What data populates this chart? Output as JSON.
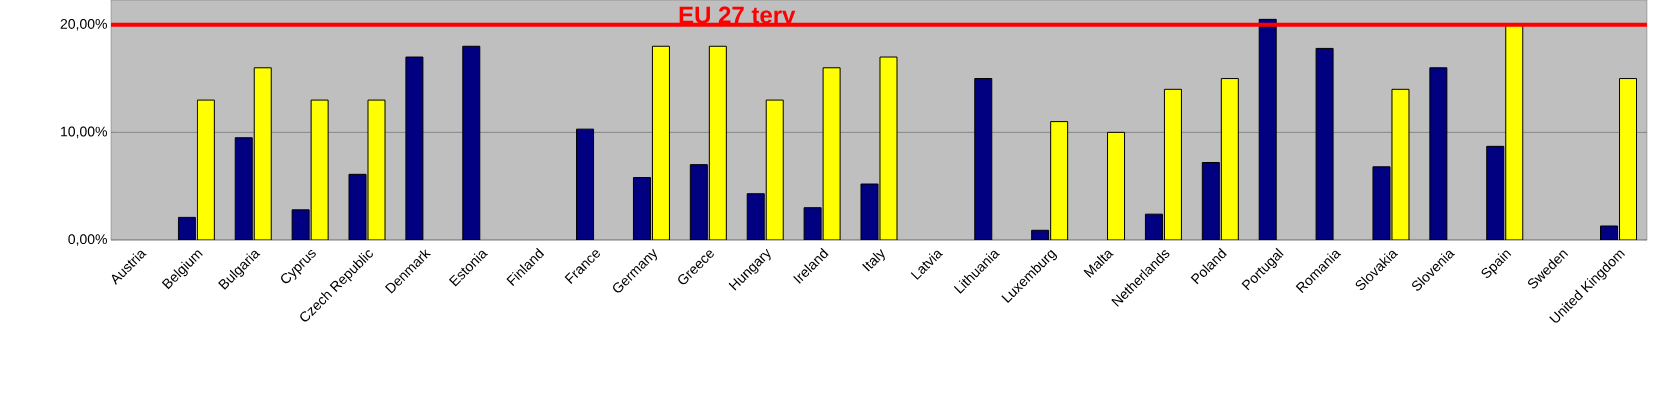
{
  "chart_data": {
    "type": "bar",
    "categories": [
      "Austria",
      "Belgium",
      "Bulgaria",
      "Cyprus",
      "Czech Republic",
      "Denmark",
      "Estonia",
      "Finland",
      "France",
      "Germany",
      "Greece",
      "Hungary",
      "Ireland",
      "Italy",
      "Latvia",
      "Lithuania",
      "Luxemburg",
      "Malta",
      "Netherlands",
      "Poland",
      "Portugal",
      "Romania",
      "Slovakia",
      "Slovenia",
      "Spain",
      "Sweden",
      "United Kingdom"
    ],
    "series": [
      {
        "color": "#000080",
        "values": [
          null,
          2.1,
          9.5,
          2.8,
          6.1,
          17,
          18,
          null,
          10.3,
          5.8,
          7,
          4.3,
          3.0,
          5.2,
          null,
          15,
          0.9,
          null,
          2.4,
          7.2,
          20.5,
          17.8,
          6.8,
          16,
          8.7,
          null,
          1.3
        ]
      },
      {
        "color": "#ffff00",
        "values": [
          null,
          13,
          16,
          13,
          13,
          null,
          null,
          null,
          null,
          18,
          18,
          13,
          16,
          17,
          null,
          null,
          11,
          10,
          14,
          15,
          null,
          null,
          14,
          null,
          20,
          null,
          15
        ]
      }
    ],
    "ylim": [
      0,
      22.3
    ],
    "yticks": [
      {
        "value": 0,
        "label": "0,00%"
      },
      {
        "value": 10,
        "label": "10,00%"
      },
      {
        "value": 20,
        "label": "20,00%"
      }
    ],
    "grid": "y",
    "ref_lines": [
      {
        "axis": "y",
        "value": 20,
        "label": "EU 27 terv",
        "color": "#ff0000"
      }
    ]
  }
}
